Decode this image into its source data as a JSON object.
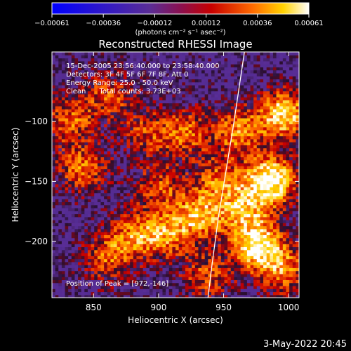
{
  "chart_data": {
    "type": "heatmap",
    "title": "Reconstructed RHESSI Image",
    "xlabel": "Heliocentric X (arcsec)",
    "ylabel": "Heliocentric Y (arcsec)",
    "xlim": [
      818,
      1008
    ],
    "ylim": [
      -247,
      -42
    ],
    "x_ticks": [
      850,
      900,
      950,
      1000
    ],
    "y_ticks": [
      -100,
      -150,
      -200
    ],
    "x_tick_labels": [
      "850",
      "900",
      "950",
      "1000"
    ],
    "y_tick_labels": [
      "−100",
      "−150",
      "−200"
    ],
    "colorbar": {
      "range": [
        -0.00061,
        0.00061
      ],
      "ticks": [
        "−0.00061",
        "−0.00036",
        "−0.00012",
        "0.00012",
        "0.00036",
        "0.00061"
      ],
      "units": "(photons cm⁻² s⁻¹ asec⁻²)",
      "colormap": [
        "#0000ff",
        "#5a2d96",
        "#c80000",
        "#ff6a00",
        "#ffd200",
        "#ffffff"
      ]
    },
    "annotations": [
      "15-Dec-2005 23:56:40.000 to 23:58:40.000",
      "Detectors: 3F 4F 5F 6F 7F 8F, Att 0",
      "Energy Range: 25.0 - 50.0 keV",
      "Clean      Total counts: 3.73E+03"
    ],
    "peak_label": "Position of Peak = [972,-146]",
    "peak": {
      "x": 972,
      "y": -146
    },
    "limb": [
      [
        966,
        -42
      ],
      [
        958,
        -100
      ],
      [
        952,
        -140
      ],
      [
        946,
        -180
      ],
      [
        941,
        -220
      ],
      [
        938,
        -247
      ]
    ],
    "blobs": [
      {
        "x": 985,
        "y": -150,
        "v": 1.0
      },
      {
        "x": 975,
        "y": -205,
        "v": 0.9
      },
      {
        "x": 995,
        "y": -95,
        "v": 0.85
      },
      {
        "x": 960,
        "y": -110,
        "v": 0.6
      },
      {
        "x": 930,
        "y": -180,
        "v": 0.65
      },
      {
        "x": 905,
        "y": -195,
        "v": 0.55
      },
      {
        "x": 880,
        "y": -195,
        "v": 0.5
      },
      {
        "x": 860,
        "y": -215,
        "v": 0.5
      },
      {
        "x": 840,
        "y": -140,
        "v": 0.55
      },
      {
        "x": 830,
        "y": -100,
        "v": 0.5
      },
      {
        "x": 860,
        "y": -80,
        "v": 0.45
      },
      {
        "x": 920,
        "y": -110,
        "v": 0.5
      },
      {
        "x": 890,
        "y": -110,
        "v": 0.4
      },
      {
        "x": 900,
        "y": -155,
        "v": 0.45
      },
      {
        "x": 945,
        "y": -150,
        "v": 0.5
      },
      {
        "x": 935,
        "y": -230,
        "v": 0.45
      },
      {
        "x": 995,
        "y": -225,
        "v": 0.55
      },
      {
        "x": 965,
        "y": -175,
        "v": 0.6
      }
    ]
  },
  "footer_date": "3-May-2022 20:45",
  "colors": {
    "background": "#000000",
    "axes": "#ffffff",
    "limb": "#ffffff"
  }
}
